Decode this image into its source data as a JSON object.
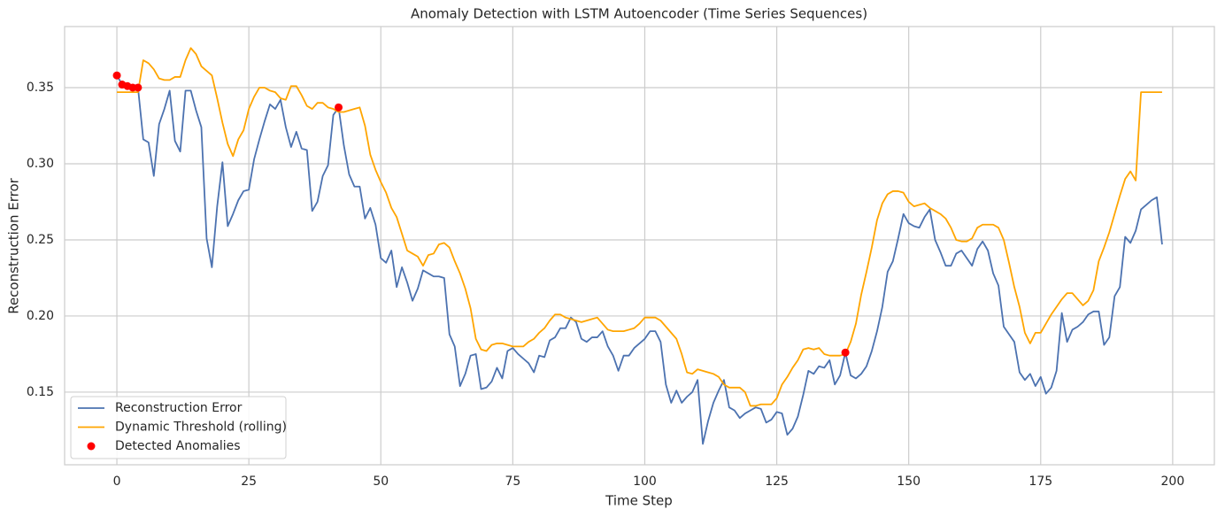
{
  "chart_data": {
    "type": "line",
    "title": "Anomaly Detection with LSTM Autoencoder (Time Series Sequences)",
    "xlabel": "Time Step",
    "ylabel": "Reconstruction Error",
    "x": [
      0,
      1,
      2,
      3,
      4,
      5,
      6,
      7,
      8,
      9,
      10,
      11,
      12,
      13,
      14,
      15,
      16,
      17,
      18,
      19,
      20,
      21,
      22,
      23,
      24,
      25,
      26,
      27,
      28,
      29,
      30,
      31,
      32,
      33,
      34,
      35,
      36,
      37,
      38,
      39,
      40,
      41,
      42,
      43,
      44,
      45,
      46,
      47,
      48,
      49,
      50,
      51,
      52,
      53,
      54,
      55,
      56,
      57,
      58,
      59,
      60,
      61,
      62,
      63,
      64,
      65,
      66,
      67,
      68,
      69,
      70,
      71,
      72,
      73,
      74,
      75,
      76,
      77,
      78,
      79,
      80,
      81,
      82,
      83,
      84,
      85,
      86,
      87,
      88,
      89,
      90,
      91,
      92,
      93,
      94,
      95,
      96,
      97,
      98,
      99,
      100,
      101,
      102,
      103,
      104,
      105,
      106,
      107,
      108,
      109,
      110,
      111,
      112,
      113,
      114,
      115,
      116,
      117,
      118,
      119,
      120,
      121,
      122,
      123,
      124,
      125,
      126,
      127,
      128,
      129,
      130,
      131,
      132,
      133,
      134,
      135,
      136,
      137,
      138,
      139,
      140,
      141,
      142,
      143,
      144,
      145,
      146,
      147,
      148,
      149,
      150,
      151,
      152,
      153,
      154,
      155,
      156,
      157,
      158,
      159,
      160,
      161,
      162,
      163,
      164,
      165,
      166,
      167,
      168,
      169,
      170,
      171,
      172,
      173,
      174,
      175,
      176,
      177,
      178,
      179,
      180,
      181,
      182,
      183,
      184,
      185,
      186,
      187,
      188,
      189,
      190,
      191,
      192,
      193,
      194,
      195,
      196,
      197,
      198
    ],
    "series": [
      {
        "name": "Reconstruction Error",
        "color": "#4c72b0",
        "values": [
          0.358,
          0.352,
          0.351,
          0.35,
          0.35,
          0.316,
          0.314,
          0.292,
          0.326,
          0.336,
          0.348,
          0.315,
          0.308,
          0.348,
          0.348,
          0.335,
          0.324,
          0.251,
          0.232,
          0.272,
          0.301,
          0.259,
          0.267,
          0.276,
          0.282,
          0.283,
          0.303,
          0.316,
          0.328,
          0.339,
          0.336,
          0.342,
          0.324,
          0.311,
          0.321,
          0.31,
          0.309,
          0.269,
          0.275,
          0.292,
          0.299,
          0.332,
          0.337,
          0.312,
          0.293,
          0.285,
          0.285,
          0.264,
          0.271,
          0.26,
          0.238,
          0.235,
          0.243,
          0.219,
          0.232,
          0.222,
          0.21,
          0.218,
          0.23,
          0.228,
          0.226,
          0.226,
          0.225,
          0.188,
          0.18,
          0.154,
          0.162,
          0.174,
          0.175,
          0.152,
          0.153,
          0.157,
          0.166,
          0.159,
          0.177,
          0.179,
          0.175,
          0.172,
          0.169,
          0.163,
          0.174,
          0.173,
          0.184,
          0.186,
          0.192,
          0.192,
          0.199,
          0.196,
          0.185,
          0.183,
          0.186,
          0.186,
          0.19,
          0.18,
          0.174,
          0.164,
          0.174,
          0.174,
          0.179,
          0.182,
          0.185,
          0.19,
          0.19,
          0.183,
          0.155,
          0.143,
          0.151,
          0.143,
          0.147,
          0.15,
          0.158,
          0.116,
          0.131,
          0.143,
          0.151,
          0.158,
          0.14,
          0.138,
          0.133,
          0.136,
          0.138,
          0.14,
          0.139,
          0.13,
          0.132,
          0.137,
          0.136,
          0.122,
          0.126,
          0.134,
          0.148,
          0.164,
          0.162,
          0.167,
          0.166,
          0.171,
          0.155,
          0.161,
          0.176,
          0.161,
          0.159,
          0.162,
          0.167,
          0.177,
          0.19,
          0.206,
          0.229,
          0.236,
          0.251,
          0.267,
          0.261,
          0.259,
          0.258,
          0.265,
          0.27,
          0.25,
          0.242,
          0.233,
          0.233,
          0.241,
          0.243,
          0.238,
          0.233,
          0.244,
          0.249,
          0.243,
          0.228,
          0.22,
          0.193,
          0.188,
          0.183,
          0.163,
          0.158,
          0.162,
          0.154,
          0.16,
          0.149,
          0.153,
          0.164,
          0.202,
          0.183,
          0.191,
          0.193,
          0.196,
          0.201,
          0.203,
          0.203,
          0.181,
          0.186,
          0.213,
          0.219,
          0.252,
          0.248,
          0.256,
          0.27,
          0.273,
          0.276,
          0.278,
          0.247
        ]
      },
      {
        "name": "Dynamic Threshold (rolling)",
        "color": "#ffa500",
        "values": [
          0.347,
          0.347,
          0.347,
          0.347,
          0.347,
          0.368,
          0.366,
          0.362,
          0.356,
          0.355,
          0.355,
          0.357,
          0.357,
          0.368,
          0.376,
          0.372,
          0.364,
          0.361,
          0.358,
          0.343,
          0.327,
          0.313,
          0.305,
          0.316,
          0.322,
          0.336,
          0.344,
          0.35,
          0.35,
          0.348,
          0.347,
          0.343,
          0.342,
          0.351,
          0.351,
          0.345,
          0.338,
          0.336,
          0.34,
          0.34,
          0.337,
          0.336,
          0.334,
          0.334,
          0.335,
          0.336,
          0.337,
          0.325,
          0.306,
          0.296,
          0.288,
          0.281,
          0.271,
          0.265,
          0.254,
          0.243,
          0.241,
          0.239,
          0.233,
          0.24,
          0.241,
          0.247,
          0.248,
          0.245,
          0.236,
          0.228,
          0.218,
          0.205,
          0.185,
          0.178,
          0.177,
          0.181,
          0.182,
          0.182,
          0.181,
          0.18,
          0.18,
          0.18,
          0.183,
          0.185,
          0.189,
          0.192,
          0.197,
          0.201,
          0.201,
          0.199,
          0.198,
          0.197,
          0.196,
          0.197,
          0.198,
          0.199,
          0.195,
          0.191,
          0.19,
          0.19,
          0.19,
          0.191,
          0.192,
          0.195,
          0.199,
          0.199,
          0.199,
          0.197,
          0.193,
          0.189,
          0.185,
          0.175,
          0.163,
          0.162,
          0.165,
          0.164,
          0.163,
          0.162,
          0.16,
          0.155,
          0.153,
          0.153,
          0.153,
          0.15,
          0.141,
          0.141,
          0.142,
          0.142,
          0.142,
          0.146,
          0.155,
          0.16,
          0.166,
          0.171,
          0.178,
          0.179,
          0.178,
          0.179,
          0.175,
          0.174,
          0.174,
          0.174,
          0.175,
          0.183,
          0.195,
          0.214,
          0.229,
          0.245,
          0.263,
          0.274,
          0.28,
          0.282,
          0.282,
          0.281,
          0.275,
          0.272,
          0.273,
          0.274,
          0.271,
          0.269,
          0.267,
          0.264,
          0.258,
          0.25,
          0.249,
          0.249,
          0.251,
          0.258,
          0.26,
          0.26,
          0.26,
          0.258,
          0.25,
          0.235,
          0.219,
          0.206,
          0.189,
          0.182,
          0.189,
          0.189,
          0.195,
          0.201,
          0.206,
          0.211,
          0.215,
          0.215,
          0.211,
          0.207,
          0.21,
          0.217,
          0.236,
          0.245,
          0.255,
          0.267,
          0.279,
          0.29,
          0.295,
          0.289,
          0.347,
          0.347,
          0.347,
          0.347,
          0.347
        ]
      }
    ],
    "anomalies": {
      "name": "Detected Anomalies",
      "color": "#ff0000",
      "x": [
        0,
        1,
        2,
        3,
        4,
        42,
        138
      ],
      "values": [
        0.358,
        0.352,
        0.351,
        0.35,
        0.35,
        0.337,
        0.176
      ]
    },
    "xlim": [
      -9.9,
      207.9
    ],
    "ylim": [
      0.1023,
      0.3901
    ],
    "xticks": [
      0,
      25,
      50,
      75,
      100,
      125,
      150,
      175,
      200
    ],
    "yticks": [
      0.15,
      {
        "value": 0.2,
        "label": "0.20"
      },
      0.25,
      {
        "value": 0.3,
        "label": "0.30"
      },
      0.35
    ],
    "grid": true,
    "legend": "lower left"
  }
}
